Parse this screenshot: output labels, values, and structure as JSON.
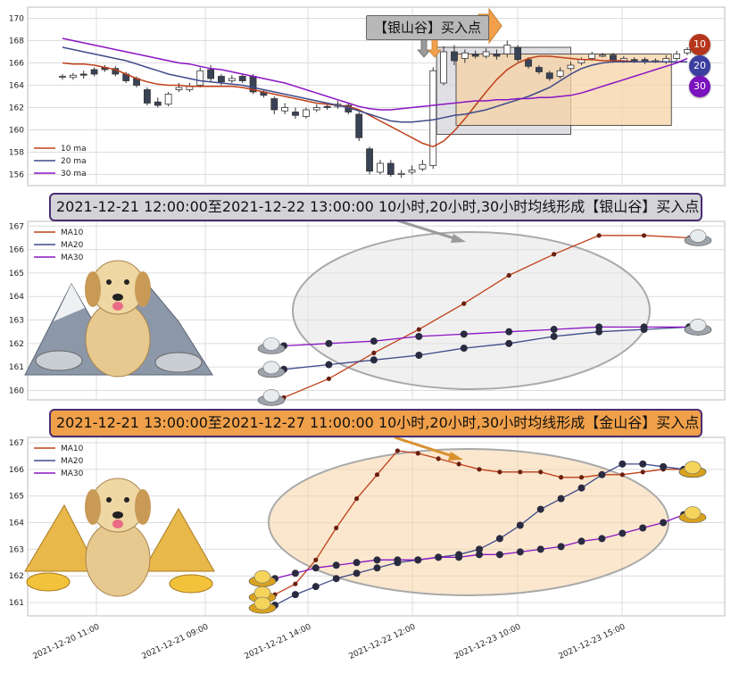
{
  "callout_label": "【银山谷】买入点",
  "banners": {
    "silver": "2021-12-21 12:00:00至2021-12-22 13:00:00 10小时,20小时,30小时均线形成【银山谷】买入点",
    "gold": "2021-12-21 13:00:00至2021-12-27 11:00:00 10小时,20小时,30小时均线形成【金山谷】买入点"
  },
  "badges": [
    "10",
    "20",
    "30"
  ],
  "colors": {
    "ma10": "#c0401a",
    "ma20": "#3f4a8a",
    "ma30": "#8a14c4",
    "candle_down": "#3a4256",
    "silver_box": "#d3d3d8",
    "gold_box": "#f6d3a6"
  },
  "chart_data": [
    {
      "type": "candlestick",
      "ylim": [
        155,
        171
      ],
      "yticks": [
        156,
        158,
        160,
        162,
        164,
        166,
        168,
        170
      ],
      "legend": [
        "10 ma",
        "20 ma",
        "30 ma"
      ],
      "legend_position": "bottom-left",
      "grid": true,
      "candles": [
        [
          164.8,
          164.8,
          165.0,
          164.5
        ],
        [
          164.7,
          164.9,
          165.1,
          164.5
        ],
        [
          165.0,
          164.9,
          165.3,
          164.6
        ],
        [
          165.4,
          165.0,
          165.6,
          164.8
        ],
        [
          165.6,
          165.4,
          165.8,
          165.2
        ],
        [
          165.5,
          165.0,
          165.7,
          164.8
        ],
        [
          165.0,
          164.4,
          165.2,
          164.2
        ],
        [
          164.6,
          164.0,
          164.8,
          163.8
        ],
        [
          163.6,
          162.4,
          163.8,
          162.2
        ],
        [
          162.5,
          162.2,
          162.9,
          162.0
        ],
        [
          162.3,
          163.2,
          163.4,
          162.1
        ],
        [
          163.6,
          163.8,
          164.2,
          163.4
        ],
        [
          163.6,
          163.9,
          164.2,
          163.4
        ],
        [
          164.0,
          165.3,
          165.6,
          163.8
        ],
        [
          165.4,
          164.6,
          165.8,
          164.3
        ],
        [
          164.8,
          164.3,
          165.0,
          164.0
        ],
        [
          164.4,
          164.6,
          164.9,
          164.2
        ],
        [
          164.8,
          164.4,
          165.0,
          164.2
        ],
        [
          164.8,
          163.4,
          165.0,
          163.2
        ],
        [
          163.4,
          163.1,
          163.6,
          162.9
        ],
        [
          162.8,
          161.8,
          163.0,
          161.4
        ],
        [
          161.7,
          162.0,
          162.4,
          161.4
        ],
        [
          161.6,
          161.3,
          162.0,
          161.0
        ],
        [
          161.2,
          161.8,
          162.0,
          161.0
        ],
        [
          161.8,
          162.0,
          162.3,
          161.6
        ],
        [
          162.1,
          162.0,
          162.4,
          161.8
        ],
        [
          162.1,
          162.3,
          162.6,
          161.9
        ],
        [
          162.2,
          161.6,
          162.4,
          161.4
        ],
        [
          161.4,
          159.3,
          161.6,
          159.0
        ],
        [
          158.3,
          156.3,
          158.5,
          156.0
        ],
        [
          156.2,
          157.0,
          157.3,
          156.0
        ],
        [
          157.0,
          156.0,
          157.3,
          155.8
        ],
        [
          156.0,
          156.1,
          156.4,
          155.7
        ],
        [
          156.2,
          156.4,
          156.8,
          156.0
        ],
        [
          156.5,
          156.9,
          157.3,
          156.3
        ],
        [
          156.8,
          165.3,
          165.6,
          156.5
        ],
        [
          164.2,
          167.0,
          167.5,
          164.0
        ],
        [
          167.0,
          166.2,
          167.6,
          165.8
        ],
        [
          166.4,
          166.9,
          167.2,
          166.0
        ],
        [
          166.8,
          166.6,
          167.1,
          166.4
        ],
        [
          166.6,
          167.0,
          167.3,
          166.4
        ],
        [
          166.8,
          166.6,
          167.2,
          166.3
        ],
        [
          166.8,
          167.6,
          168.0,
          166.5
        ],
        [
          167.4,
          166.3,
          167.6,
          166.1
        ],
        [
          166.3,
          165.7,
          166.5,
          165.5
        ],
        [
          165.6,
          165.2,
          165.8,
          165.0
        ],
        [
          165.1,
          164.6,
          165.3,
          164.4
        ],
        [
          164.8,
          165.3,
          165.6,
          164.6
        ],
        [
          165.5,
          165.8,
          166.1,
          165.3
        ],
        [
          166.0,
          166.3,
          166.5,
          165.8
        ],
        [
          166.4,
          166.8,
          167.0,
          166.2
        ],
        [
          166.6,
          166.7,
          166.9,
          166.5
        ],
        [
          166.7,
          166.2,
          166.9,
          166.0
        ],
        [
          166.2,
          166.4,
          166.6,
          166.0
        ],
        [
          166.3,
          166.2,
          166.5,
          166.0
        ],
        [
          166.3,
          166.1,
          166.5,
          165.9
        ],
        [
          166.2,
          166.2,
          166.4,
          166.0
        ],
        [
          166.1,
          166.4,
          166.7,
          165.9
        ],
        [
          166.4,
          166.8,
          167.1,
          166.2
        ],
        [
          166.9,
          167.2,
          167.4,
          166.7
        ]
      ],
      "ma10": [
        166.0,
        165.9,
        165.9,
        165.8,
        165.6,
        165.4,
        165.0,
        164.6,
        164.3,
        164.1,
        164.0,
        164.0,
        163.9,
        163.9,
        163.9,
        163.9,
        163.9,
        163.8,
        163.6,
        163.4,
        163.2,
        163.0,
        162.8,
        162.6,
        162.4,
        162.3,
        162.2,
        162.1,
        161.8,
        161.3,
        160.8,
        160.3,
        159.8,
        159.3,
        158.8,
        158.5,
        159.0,
        159.9,
        161.0,
        162.2,
        163.4,
        164.5,
        165.4,
        166.0,
        166.4,
        166.6,
        166.6,
        166.5,
        166.4,
        166.3,
        166.3,
        166.2,
        166.2,
        166.2,
        166.1,
        166.1,
        166.1,
        166.1,
        166.1,
        166.1
      ],
      "ma20": [
        167.4,
        167.2,
        167.0,
        166.8,
        166.6,
        166.4,
        166.2,
        165.9,
        165.6,
        165.3,
        165.0,
        164.8,
        164.6,
        164.4,
        164.3,
        164.2,
        164.1,
        164.0,
        163.8,
        163.6,
        163.4,
        163.2,
        163.0,
        162.8,
        162.6,
        162.4,
        162.2,
        162.0,
        161.7,
        161.4,
        161.1,
        160.8,
        160.7,
        160.7,
        160.8,
        160.9,
        161.1,
        161.3,
        161.4,
        161.6,
        161.8,
        162.1,
        162.4,
        162.7,
        163.0,
        163.4,
        163.8,
        164.4,
        165.0,
        165.5,
        165.8,
        166.0,
        166.1,
        166.1,
        166.1,
        166.1,
        166.1,
        166.1,
        166.1,
        166.1
      ],
      "ma30": [
        168.2,
        168.0,
        167.8,
        167.6,
        167.4,
        167.2,
        167.0,
        166.8,
        166.6,
        166.4,
        166.2,
        166.0,
        165.9,
        165.7,
        165.5,
        165.4,
        165.2,
        165.0,
        164.8,
        164.6,
        164.4,
        164.2,
        163.9,
        163.6,
        163.3,
        163.0,
        162.7,
        162.4,
        162.1,
        161.9,
        161.8,
        161.8,
        161.9,
        162.0,
        162.1,
        162.2,
        162.3,
        162.4,
        162.5,
        162.6,
        162.6,
        162.7,
        162.7,
        162.8,
        162.8,
        162.9,
        162.9,
        163.0,
        163.1,
        163.3,
        163.6,
        163.9,
        164.2,
        164.5,
        164.8,
        165.1,
        165.4,
        165.7,
        166.0,
        166.4
      ]
    },
    {
      "type": "line",
      "ylim": [
        159.6,
        167.2
      ],
      "yticks": [
        160,
        161,
        162,
        163,
        164,
        165,
        166,
        167
      ],
      "legend_position": "top-left",
      "grid": true,
      "series": [
        {
          "name": "MA10",
          "values": [
            159.7,
            160.5,
            161.6,
            162.6,
            163.7,
            164.9,
            165.8,
            166.6,
            166.6,
            166.5
          ]
        },
        {
          "name": "MA20",
          "values": [
            160.9,
            161.1,
            161.3,
            161.5,
            161.8,
            162.0,
            162.3,
            162.5,
            162.6,
            162.7
          ]
        },
        {
          "name": "MA30",
          "values": [
            161.9,
            162.0,
            162.1,
            162.3,
            162.4,
            162.5,
            162.6,
            162.7,
            162.7,
            162.7
          ]
        }
      ]
    },
    {
      "type": "line",
      "ylim": [
        160.5,
        167.2
      ],
      "yticks": [
        161,
        162,
        163,
        164,
        165,
        166,
        167
      ],
      "legend_position": "top-left",
      "grid": true,
      "xticks": [
        "2021-12-20 11:00",
        "2021-12-21 09:00",
        "2021-12-21 14:00",
        "2021-12-22 12:00",
        "2021-12-23 10:00",
        "2021-12-23 15:00"
      ],
      "series": [
        {
          "name": "MA10",
          "values": [
            161.3,
            161.7,
            162.6,
            163.8,
            164.9,
            165.8,
            166.7,
            166.6,
            166.4,
            166.2,
            166.0,
            165.9,
            165.9,
            165.9,
            165.7,
            165.7,
            165.8,
            165.8,
            165.9,
            166.0,
            166.0
          ]
        },
        {
          "name": "MA20",
          "values": [
            160.9,
            161.3,
            161.6,
            161.9,
            162.1,
            162.3,
            162.5,
            162.6,
            162.7,
            162.8,
            163.0,
            163.4,
            163.9,
            164.5,
            164.9,
            165.3,
            165.8,
            166.2,
            166.2,
            166.1,
            166.0
          ]
        },
        {
          "name": "MA30",
          "values": [
            161.9,
            162.1,
            162.3,
            162.4,
            162.5,
            162.6,
            162.6,
            162.6,
            162.7,
            162.7,
            162.8,
            162.8,
            162.9,
            163.0,
            163.1,
            163.3,
            163.4,
            163.6,
            163.8,
            164.0,
            164.3
          ]
        }
      ]
    }
  ]
}
